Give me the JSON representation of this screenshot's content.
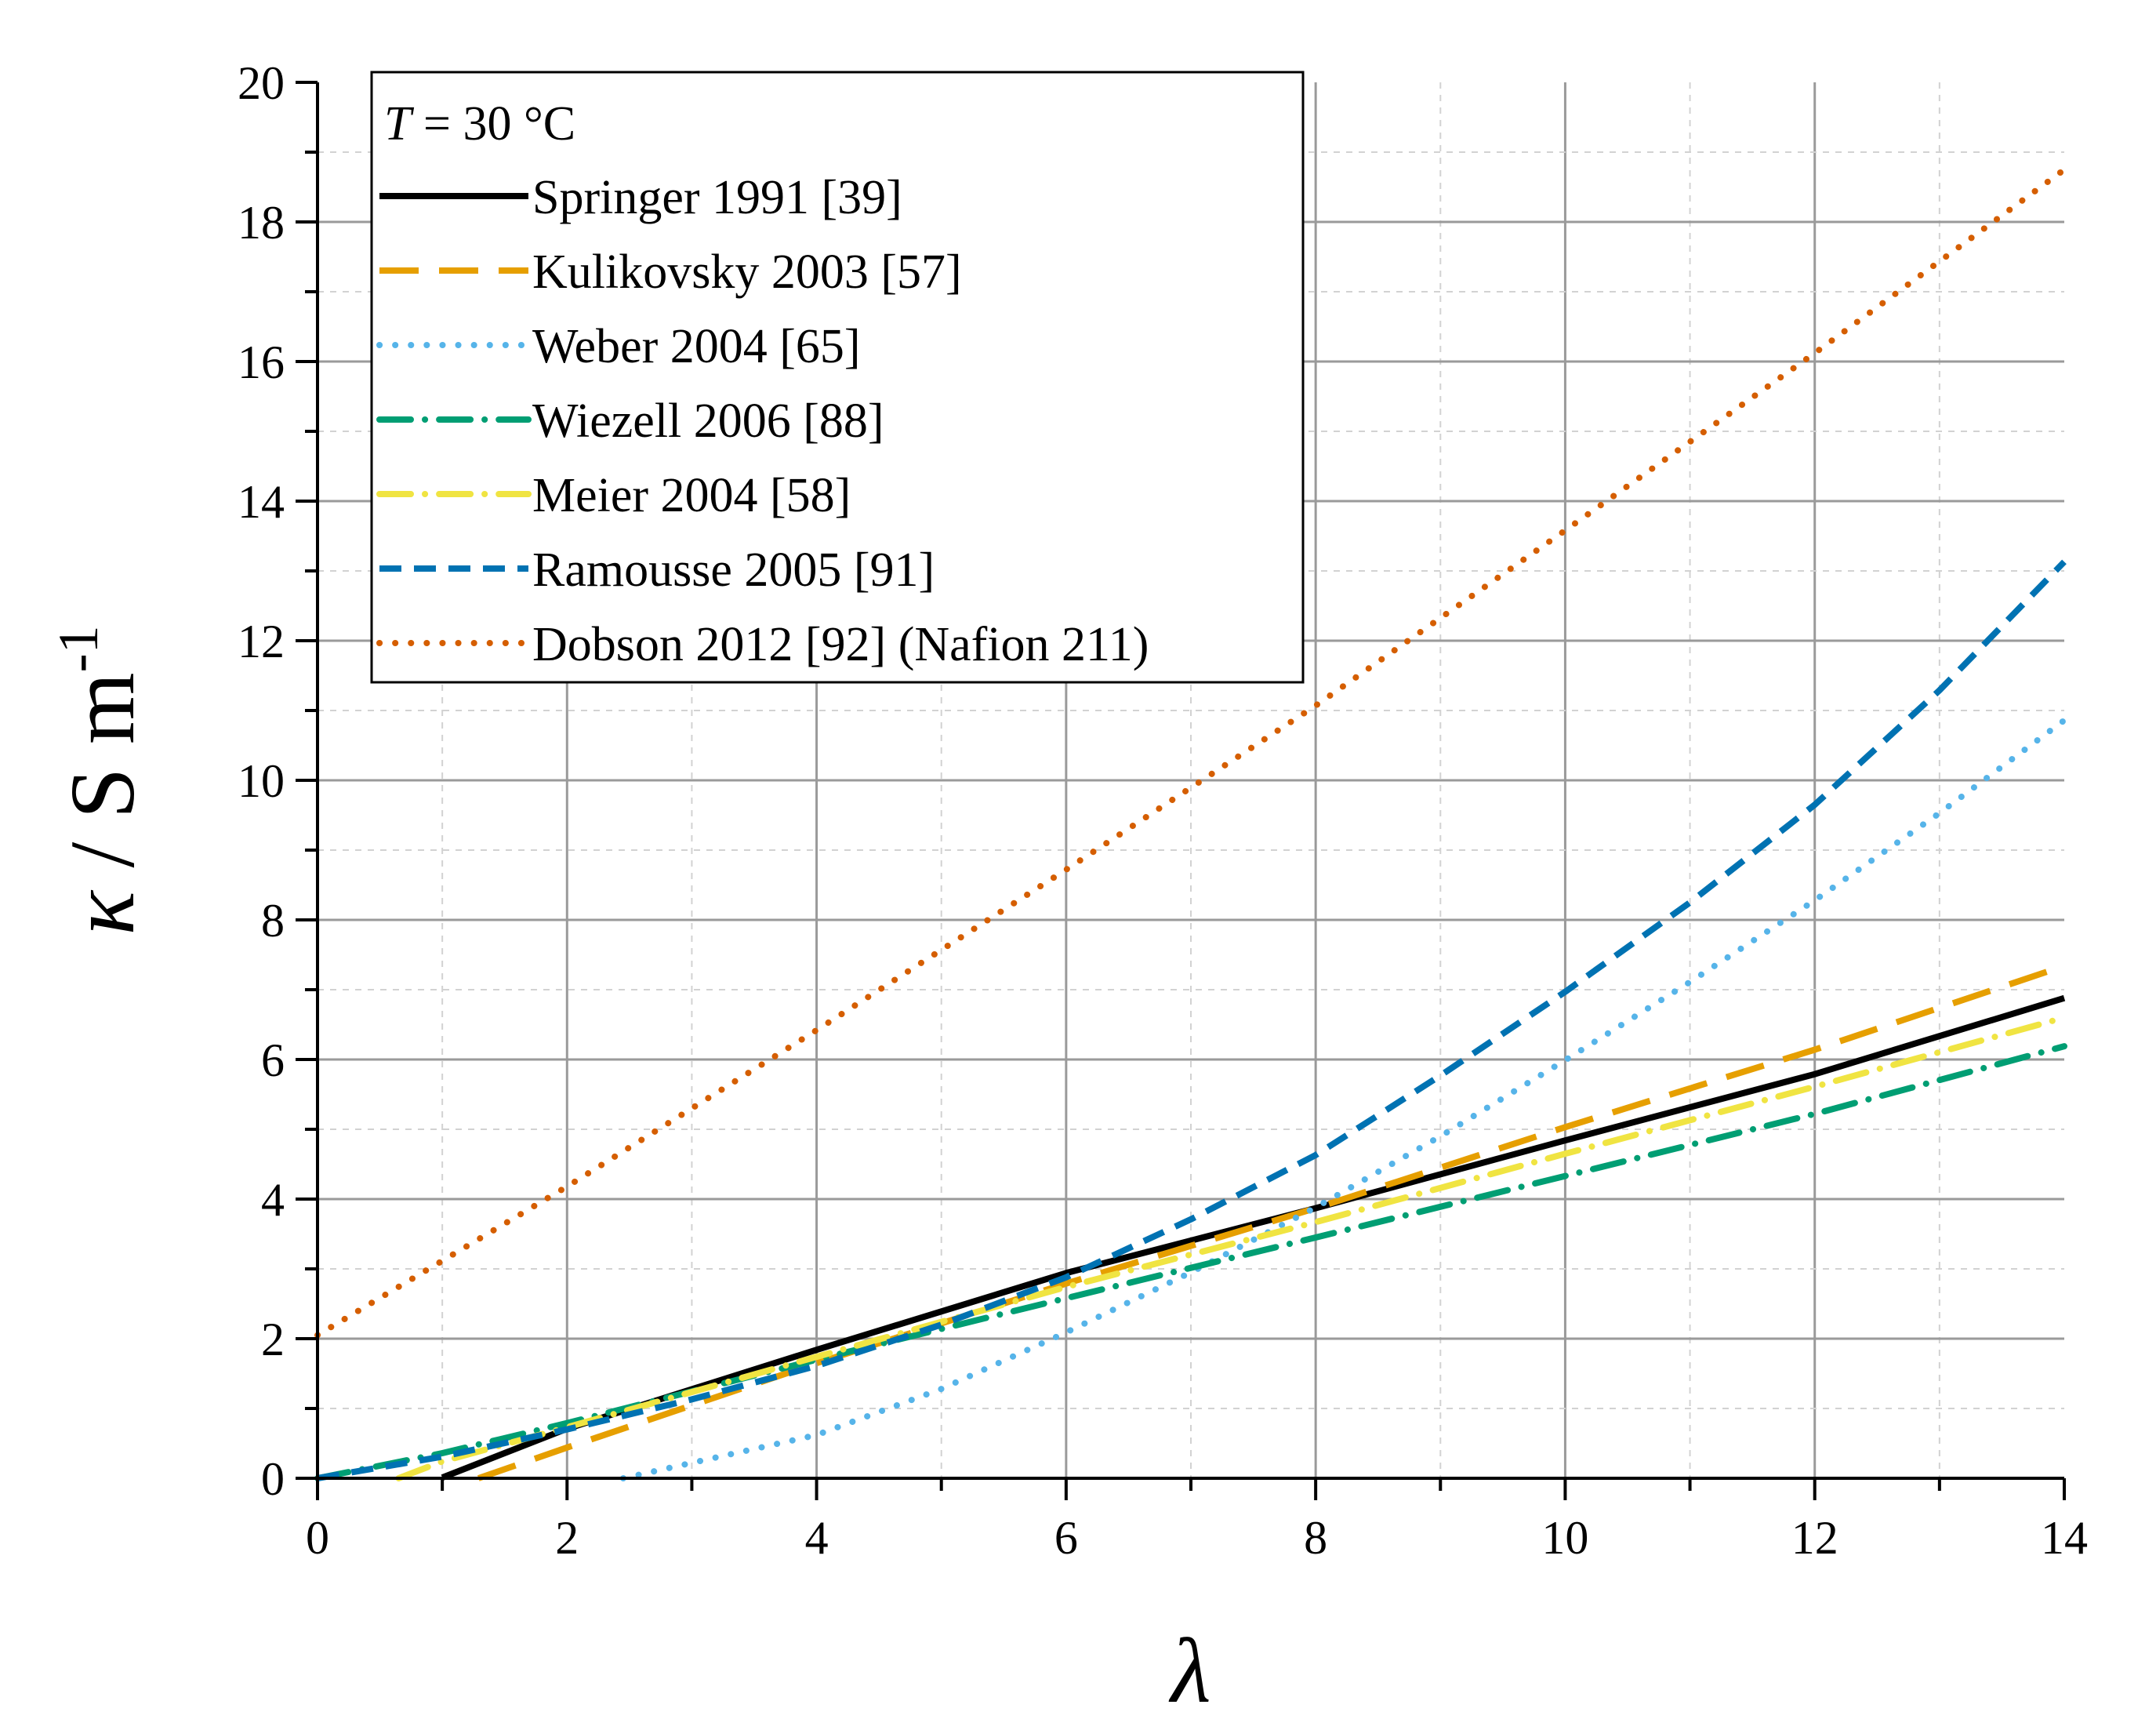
{
  "chart_data": {
    "type": "line",
    "title": "",
    "xlabel": "λ",
    "ylabel_parts": {
      "kappa": "κ",
      "sep": " / ",
      "units": "S m",
      "sup": "-1"
    },
    "xlim": [
      0,
      14
    ],
    "ylim": [
      0,
      20
    ],
    "x_ticks": [
      0,
      2,
      4,
      6,
      8,
      10,
      12,
      14
    ],
    "y_ticks": [
      0,
      2,
      4,
      6,
      8,
      10,
      12,
      14,
      16,
      18,
      20
    ],
    "x_tick_labels": [
      "0",
      "2",
      "4",
      "6",
      "8",
      "10",
      "12",
      "14"
    ],
    "y_tick_labels": [
      "0",
      "2",
      "4",
      "6",
      "8",
      "10",
      "12",
      "14",
      "16",
      "18",
      "20"
    ],
    "grid": true,
    "legend_position": "top-left",
    "legend_header": {
      "var": "T",
      "rest": " = 30 °C"
    },
    "series": [
      {
        "name": "Springer 1991 [39]",
        "color": "#000000",
        "dash": "solid",
        "x": [
          1,
          2,
          4,
          6,
          8,
          10,
          12,
          14
        ],
        "y": [
          0.01,
          0.71,
          1.84,
          2.94,
          3.87,
          4.84,
          5.79,
          6.88
        ]
      },
      {
        "name": "Kulikovsky 2003 [57]",
        "color": "#E69F00",
        "dash": "long-dash",
        "x": [
          1.29,
          2,
          4,
          6,
          8,
          10,
          12,
          14
        ],
        "y": [
          0.0,
          0.44,
          1.65,
          2.79,
          3.87,
          5.03,
          6.14,
          7.34
        ]
      },
      {
        "name": "Weber 2004 [65]",
        "color": "#56B4E9",
        "dash": "dot",
        "x": [
          2.45,
          3,
          4,
          5,
          6,
          7,
          8,
          9,
          10,
          11,
          12,
          13,
          14
        ],
        "y": [
          0.0,
          0.22,
          0.62,
          1.28,
          2.09,
          2.95,
          3.88,
          4.9,
          5.99,
          7.11,
          8.28,
          9.53,
          10.86
        ]
      },
      {
        "name": "Wiezell 2006 [88]",
        "color": "#009E73",
        "dash": "dash-dot",
        "x": [
          0,
          1,
          2,
          4,
          6,
          8,
          10,
          12,
          14
        ],
        "y": [
          0.0,
          0.36,
          0.79,
          1.7,
          2.58,
          3.45,
          4.33,
          5.22,
          6.19
        ]
      },
      {
        "name": "Meier 2004 [58]",
        "color": "#F0E442",
        "dash": "dash-dot",
        "x": [
          0.65,
          1,
          2,
          4,
          6,
          8,
          10,
          12,
          14
        ],
        "y": [
          0.0,
          0.24,
          0.73,
          1.74,
          2.74,
          3.67,
          4.65,
          5.61,
          6.6
        ]
      },
      {
        "name": "Ramousse 2005 [91]",
        "color": "#0072B2",
        "dash": "short-dash",
        "x": [
          0,
          1,
          2,
          3,
          4,
          5,
          6,
          7,
          8,
          9,
          10,
          11,
          12,
          13,
          14
        ],
        "y": [
          0.0,
          0.31,
          0.7,
          1.13,
          1.61,
          2.2,
          2.88,
          3.71,
          4.63,
          5.77,
          6.97,
          8.25,
          9.65,
          11.29,
          13.13
        ]
      },
      {
        "name": "Dobson 2012 [92] (Nafion 211)",
        "color": "#D55E00",
        "dash": "dot",
        "x": [
          0,
          2,
          4,
          6,
          8,
          10,
          12,
          14
        ],
        "y": [
          2.05,
          4.18,
          6.42,
          8.72,
          11.07,
          13.58,
          16.12,
          18.75
        ]
      }
    ]
  }
}
